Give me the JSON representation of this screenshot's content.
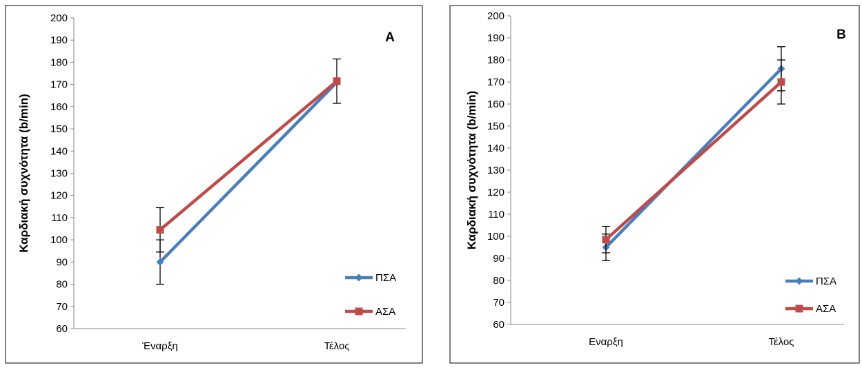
{
  "chart_data": [
    {
      "type": "line",
      "panel_label": "A",
      "title": "",
      "xlabel": "",
      "ylabel": "Καρδιακή συχνότητα  (b/min)",
      "categories": [
        "Έναρξη",
        "Τέλος"
      ],
      "ylim": [
        60,
        200
      ],
      "yticks": [
        60,
        70,
        80,
        90,
        100,
        110,
        120,
        130,
        140,
        150,
        160,
        170,
        180,
        190,
        200
      ],
      "grid": false,
      "legend_position": "bottom-right",
      "series": [
        {
          "name": "ΠΣΑ",
          "values": [
            90,
            171
          ],
          "error": [
            10,
            null
          ],
          "color": "#4a7ebb",
          "marker": "diamond"
        },
        {
          "name": "ΑΣΑ",
          "values": [
            104.5,
            171.5
          ],
          "error": [
            10,
            10
          ],
          "color": "#be4b48",
          "marker": "square"
        }
      ]
    },
    {
      "type": "line",
      "panel_label": "B",
      "title": "",
      "xlabel": "",
      "ylabel": "Καρδιακή συχνότητα  (b/min)",
      "categories": [
        "Εναρξη",
        "Τέλος"
      ],
      "ylim": [
        60,
        200
      ],
      "yticks": [
        60,
        70,
        80,
        90,
        100,
        110,
        120,
        130,
        140,
        150,
        160,
        170,
        180,
        190,
        200
      ],
      "grid": false,
      "legend_position": "bottom-right",
      "series": [
        {
          "name": "ΠΣΑ",
          "values": [
            95,
            176
          ],
          "error": [
            6,
            10
          ],
          "color": "#4a7ebb",
          "marker": "diamond"
        },
        {
          "name": "ΑΣΑ",
          "values": [
            98.5,
            170
          ],
          "error": [
            6,
            10
          ],
          "color": "#be4b48",
          "marker": "square"
        }
      ]
    }
  ]
}
